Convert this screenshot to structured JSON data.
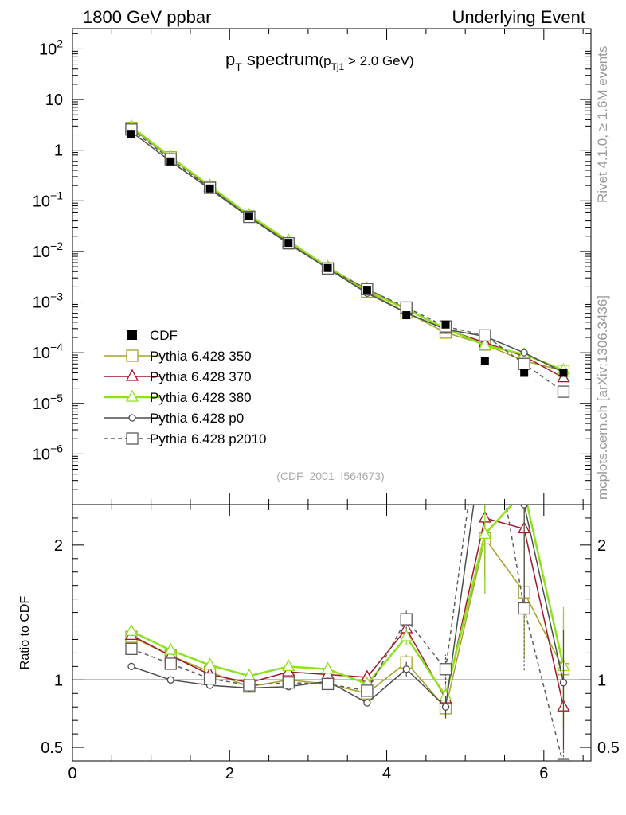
{
  "header": {
    "left": "1800 GeV ppbar",
    "right": "Underlying Event",
    "side_top": "Rivet 4.1.0, ≥ 1.6M events",
    "side_bottom": "mcplots.cern.ch [arXiv:1306.3436]"
  },
  "colors": {
    "cdf": "#000000",
    "p350": "#a6a228",
    "p370": "#a0162c",
    "p380": "#8ee11e",
    "p0": "#4d4d4d",
    "p2010": "#5c5c5c",
    "ref_line": "#000000"
  },
  "chart_data": {
    "type": "line",
    "title_main": "p",
    "title_main_sub": "T",
    "title_word": " spectrum",
    "title_cut_open": "(p",
    "title_cut_sub": "Tj1",
    "title_cut_rest": " > 2.0 GeV)",
    "watermark": "(CDF_2001_I564673)",
    "ratio_ylabel": "Ratio to CDF",
    "x": [
      0.75,
      1.25,
      1.75,
      2.25,
      2.75,
      3.25,
      3.75,
      4.25,
      4.75,
      5.25,
      5.75,
      6.25
    ],
    "xlim": [
      0,
      6.6
    ],
    "xticks": [
      0,
      2,
      4,
      6
    ],
    "xtick_labels": [
      "0",
      "2",
      "4",
      "6"
    ],
    "main_ylim_log10": [
      -7,
      2.4
    ],
    "main_yticks": [
      {
        "v": 2,
        "base": "10",
        "exp": "2"
      },
      {
        "v": 1,
        "base": "10",
        "exp": ""
      },
      {
        "v": 0,
        "base": "1",
        "exp": ""
      },
      {
        "v": -1,
        "base": "10",
        "exp": "−1"
      },
      {
        "v": -2,
        "base": "10",
        "exp": "−2"
      },
      {
        "v": -3,
        "base": "10",
        "exp": "−3"
      },
      {
        "v": -4,
        "base": "10",
        "exp": "−4"
      },
      {
        "v": -5,
        "base": "10",
        "exp": "−5"
      },
      {
        "v": -6,
        "base": "10",
        "exp": "−6"
      }
    ],
    "ratio_ylim": [
      0.4,
      2.3
    ],
    "ratio_yticks": [
      0.5,
      1,
      2
    ],
    "ratio_ytick_labels": [
      "0.5",
      "1",
      "2"
    ],
    "data": {
      "name": "CDF",
      "values": [
        2.1,
        0.6,
        0.175,
        0.05,
        0.0148,
        0.0047,
        0.00175,
        0.00055,
        0.00036,
        7e-05,
        4e-05,
        4e-05
      ]
    },
    "series": [
      {
        "key": "p350",
        "name": "Pythia 6.428 350",
        "marker": "square",
        "dash": false,
        "width": 1.5,
        "values": [
          2.75,
          0.72,
          0.19,
          0.049,
          0.0145,
          0.0046,
          0.0016,
          0.00062,
          0.00025,
          0.000145,
          6.9e-05,
          4.4e-05
        ],
        "ratio": [
          1.32,
          1.18,
          1.06,
          0.95,
          1.0,
          0.97,
          0.9,
          1.13,
          0.79,
          2.05,
          1.65,
          1.08
        ],
        "ratio_err": [
          0.02,
          0.02,
          0.02,
          0.02,
          0.02,
          0.02,
          0.03,
          0.05,
          0.1,
          0.2,
          0.3,
          0.4
        ]
      },
      {
        "key": "p370",
        "name": "Pythia 6.428 370",
        "marker": "triangle",
        "dash": false,
        "width": 1.5,
        "values": [
          2.8,
          0.71,
          0.185,
          0.0495,
          0.0153,
          0.0048,
          0.0018,
          0.00074,
          0.00029,
          0.000158,
          8.5e-05,
          3.2e-05
        ],
        "ratio": [
          1.33,
          1.18,
          1.04,
          0.98,
          1.06,
          1.04,
          1.02,
          1.38,
          0.86,
          2.2,
          2.12,
          0.8
        ],
        "ratio_err": [
          0.02,
          0.02,
          0.02,
          0.02,
          0.02,
          0.02,
          0.03,
          0.05,
          0.1,
          0.2,
          0.3,
          0.4
        ]
      },
      {
        "key": "p380",
        "name": "Pythia 6.428 380",
        "marker": "triangle",
        "dash": false,
        "width": 2.5,
        "values": [
          2.9,
          0.73,
          0.195,
          0.052,
          0.0161,
          0.0049,
          0.0017,
          0.00072,
          0.0003,
          0.00014,
          9.3e-05,
          4.5e-05
        ],
        "ratio": [
          1.36,
          1.22,
          1.11,
          1.03,
          1.1,
          1.08,
          0.97,
          1.32,
          0.88,
          2.08,
          2.4,
          1.1
        ],
        "ratio_err": [
          0.02,
          0.02,
          0.02,
          0.02,
          0.02,
          0.02,
          0.03,
          0.05,
          0.1,
          0.2,
          0.3,
          0.4
        ]
      },
      {
        "key": "p0",
        "name": "Pythia 6.428 p0",
        "marker": "circle",
        "dash": false,
        "width": 1.5,
        "values": [
          2.3,
          0.6,
          0.17,
          0.0475,
          0.0142,
          0.0046,
          0.0015,
          0.00061,
          0.00029,
          0.00021,
          0.0001,
          4.1e-05
        ],
        "ratio": [
          1.1,
          1.0,
          0.96,
          0.94,
          0.95,
          0.99,
          0.83,
          1.08,
          0.8,
          2.9,
          2.3,
          0.98
        ],
        "ratio_err": [
          0.02,
          0.02,
          0.02,
          0.02,
          0.02,
          0.02,
          0.03,
          0.05,
          0.1,
          0.2,
          0.3,
          0.4
        ]
      },
      {
        "key": "p2010",
        "name": "Pythia 6.428 p2010",
        "marker": "square",
        "dash": true,
        "width": 1.5,
        "values": [
          2.55,
          0.66,
          0.18,
          0.048,
          0.0145,
          0.0046,
          0.0018,
          0.00078,
          0.00033,
          0.00022,
          6e-05,
          1.7e-05
        ],
        "ratio": [
          1.23,
          1.12,
          1.01,
          0.96,
          0.98,
          0.97,
          0.92,
          1.45,
          1.08,
          3.2,
          1.53,
          0.37
        ],
        "ratio_err": [
          0.02,
          0.02,
          0.02,
          0.02,
          0.02,
          0.02,
          0.03,
          0.05,
          0.1,
          0.2,
          0.3,
          0.4
        ]
      }
    ]
  }
}
